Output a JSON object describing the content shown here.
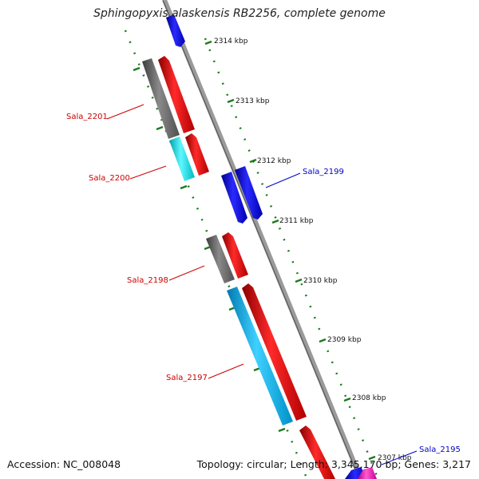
{
  "title": "Sphingopyxis alaskensis RB2256, complete genome",
  "accession": "Accession: NC_008048",
  "topology": "Topology: circular; Length: 3,345,170 bp; Genes: 3,217",
  "colors": {
    "backbone": "#8c8c8c",
    "tick": "#1d7a1d",
    "label_forward": "#0000cc",
    "label_reverse": "#cc0000"
  },
  "kbp_ticks": [
    {
      "label": "2314 kbp"
    },
    {
      "label": "2313 kbp"
    },
    {
      "label": "2312 kbp"
    },
    {
      "label": "2311 kbp"
    },
    {
      "label": "2310 kbp"
    },
    {
      "label": "2309 kbp"
    },
    {
      "label": "2308 kbp"
    },
    {
      "label": "2307 kbp"
    }
  ],
  "gene_labels": [
    {
      "name": "Sala_2201",
      "strand": "reverse"
    },
    {
      "name": "Sala_2200",
      "strand": "reverse"
    },
    {
      "name": "Sala_2199",
      "strand": "forward"
    },
    {
      "name": "Sala_2198",
      "strand": "reverse"
    },
    {
      "name": "Sala_2197",
      "strand": "reverse"
    },
    {
      "name": "Sala_2195",
      "strand": "forward"
    }
  ]
}
